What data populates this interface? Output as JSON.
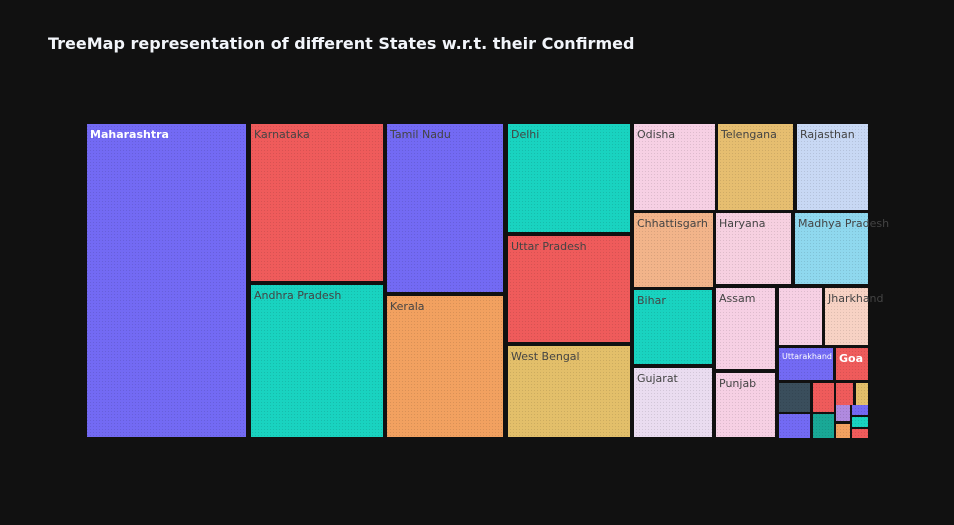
{
  "title": "TreeMap representation of different States w.r.t. their Confirmed",
  "chart_data": {
    "type": "treemap",
    "title": "TreeMap representation of different States w.r.t. their Confirmed",
    "tiles": [
      {
        "label": "Maharashtra",
        "color": "#736af4"
      },
      {
        "label": "Karnataka",
        "color": "#ef5b5b"
      },
      {
        "label": "Andhra Pradesh",
        "color": "#19d3c0"
      },
      {
        "label": "Tamil Nadu",
        "color": "#736af4"
      },
      {
        "label": "Kerala",
        "color": "#f2a160"
      },
      {
        "label": "Delhi",
        "color": "#19d3c0"
      },
      {
        "label": "Uttar Pradesh",
        "color": "#ef5b5b"
      },
      {
        "label": "West Bengal",
        "color": "#e3bf6a"
      },
      {
        "label": "Odisha",
        "color": "#f6d0e4"
      },
      {
        "label": "Telengana",
        "color": "#e6be70"
      },
      {
        "label": "Rajasthan",
        "color": "#c8d8f4"
      },
      {
        "label": "Chhattisgarh",
        "color": "#f2b48a"
      },
      {
        "label": "Haryana",
        "color": "#f6d0e0"
      },
      {
        "label": "Madhya Pradesh",
        "color": "#8fd8ee"
      },
      {
        "label": "Bihar",
        "color": "#19d3c0"
      },
      {
        "label": "Assam",
        "color": "#f6d0e4"
      },
      {
        "label": "Gujarat",
        "color": "#eadcf0"
      },
      {
        "label": "Punjab",
        "color": "#f6d0e4"
      },
      {
        "label": "",
        "color": "#f6d0e4"
      },
      {
        "label": "Jharkhand",
        "color": "#f7d2c4"
      },
      {
        "label": "Uttarakhand",
        "color": "#736af4"
      },
      {
        "label": "Goa",
        "color": "#ef5b5b"
      },
      {
        "label": "",
        "color": "#3a4e5c"
      },
      {
        "label": "",
        "color": "#ef5b5b"
      },
      {
        "label": "",
        "color": "#ef5b5b"
      },
      {
        "label": "",
        "color": "#e3bf6a"
      },
      {
        "label": "",
        "color": "#736af4"
      },
      {
        "label": "",
        "color": "#19a896"
      },
      {
        "label": "",
        "color": "#b08adf"
      },
      {
        "label": "",
        "color": "#736af4"
      },
      {
        "label": "",
        "color": "#f2a160"
      },
      {
        "label": "",
        "color": "#19d3c0"
      },
      {
        "label": "",
        "color": "#ef5b5b"
      }
    ]
  }
}
